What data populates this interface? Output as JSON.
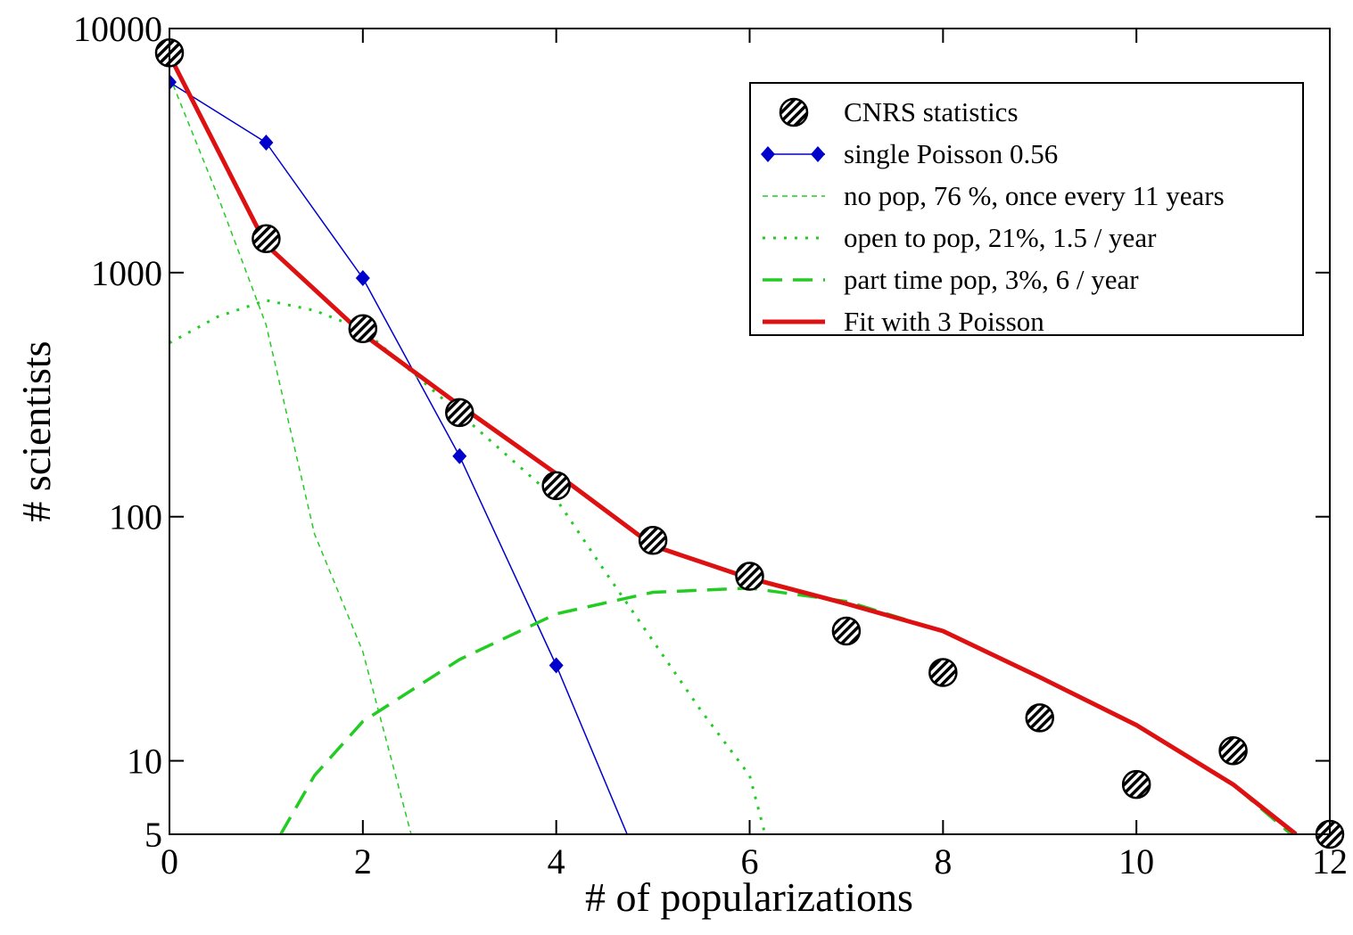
{
  "chart_data": {
    "type": "line",
    "xlabel": "# of popularizations",
    "ylabel": "# scientists",
    "xlim": [
      0,
      12
    ],
    "xticks": [
      0,
      2,
      4,
      6,
      8,
      10,
      12
    ],
    "ylim": [
      5,
      10000
    ],
    "yticks": [
      5,
      10,
      100,
      1000,
      10000
    ],
    "yscale": "log",
    "legend": "upper right",
    "series": [
      {
        "name": "CNRS statistics",
        "color": "#000000",
        "marker": "hatched-circle",
        "line": "none",
        "x": [
          0,
          1,
          2,
          3,
          4,
          5,
          6,
          7,
          8,
          9,
          10,
          11,
          12
        ],
        "values": [
          7950,
          1377,
          589,
          267,
          134,
          80,
          57,
          34,
          23,
          15,
          8,
          11,
          5
        ]
      },
      {
        "name": "single Poisson 0.56",
        "color": "#0000cc",
        "marker": "diamond",
        "line": "solid",
        "width": 1.5,
        "x": [
          0,
          1,
          2,
          3,
          4,
          5
        ],
        "values": [
          6030,
          3410,
          950,
          177,
          24.6,
          2.8
        ]
      },
      {
        "name": "no pop, 76 %, once every 11 years",
        "color": "#22cc22",
        "marker": "none",
        "line": "dashed",
        "width": 1.5,
        "x": [
          0,
          0.5,
          1,
          1.5,
          2,
          2.5
        ],
        "values": [
          6400,
          2060,
          610,
          85,
          28,
          5
        ]
      },
      {
        "name": "open to pop, 21%, 1.5 / year",
        "color": "#22cc22",
        "marker": "none",
        "line": "dotted",
        "width": 3,
        "x": [
          0,
          0.5,
          1,
          1.5,
          2,
          3,
          4,
          4.5,
          5,
          5.5,
          6,
          6.16
        ],
        "values": [
          515,
          660,
          770,
          700,
          585,
          265,
          118,
          60,
          31,
          16,
          8.7,
          5
        ]
      },
      {
        "name": "part time pop, 3%, 6 / year",
        "color": "#22cc22",
        "marker": "none",
        "line": "long-dash",
        "width": 3.5,
        "x": [
          1.15,
          1.5,
          2,
          3,
          4,
          5,
          6,
          7,
          8,
          9,
          10,
          11,
          11.6
        ],
        "values": [
          5,
          8.7,
          14.5,
          26,
          40,
          49,
          51,
          45,
          34,
          22,
          14,
          8,
          5
        ]
      },
      {
        "name": "Fit with 3 Poisson",
        "color": "#dd1111",
        "marker": "none",
        "line": "solid",
        "width": 5,
        "x": [
          0,
          1,
          2,
          3,
          4,
          5,
          6,
          7,
          8,
          9,
          10,
          11,
          11.65
        ],
        "values": [
          7770,
          1300,
          560,
          286,
          150,
          76,
          56,
          44,
          34,
          22,
          14,
          8,
          5
        ]
      }
    ]
  }
}
